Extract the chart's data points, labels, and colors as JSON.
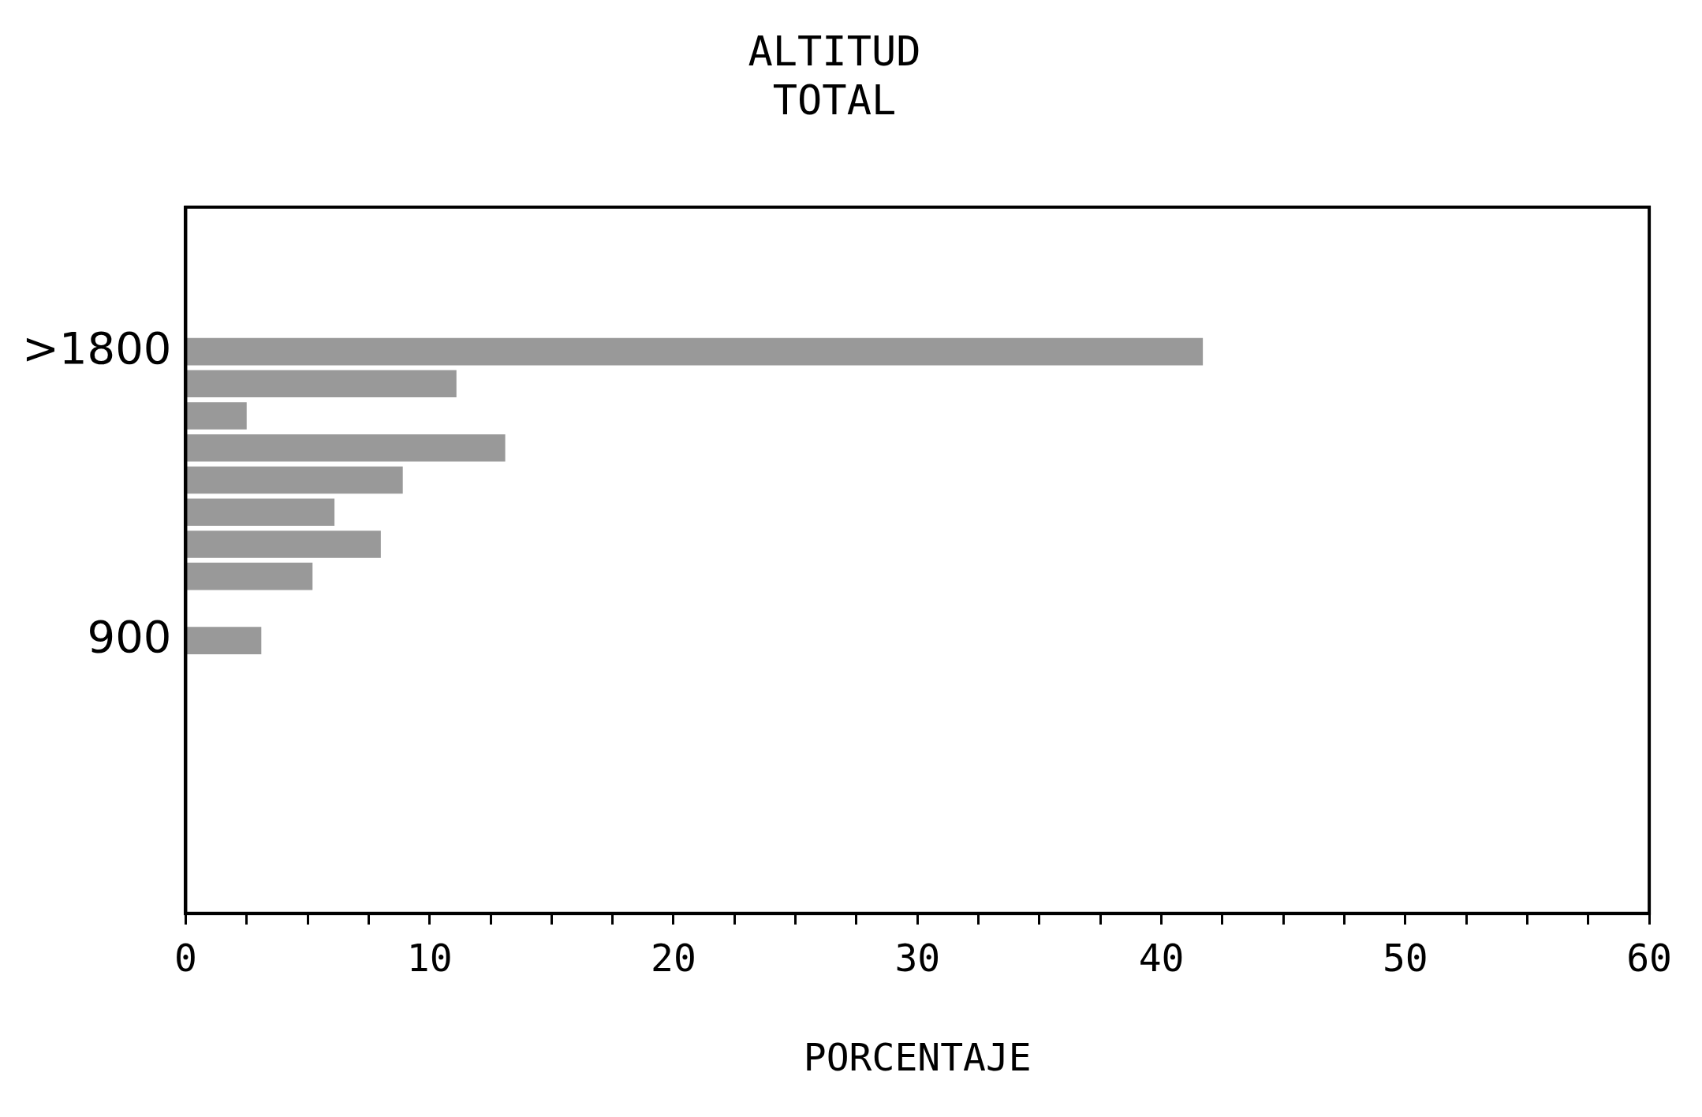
{
  "chart_data": {
    "type": "bar",
    "orientation": "horizontal",
    "title": "ALTITUD\nTOTAL",
    "xlabel": "PORCENTAJE",
    "categories": [
      null,
      null,
      null,
      null,
      ">1800",
      null,
      null,
      null,
      null,
      null,
      null,
      null,
      null,
      "900",
      null,
      null,
      null,
      null,
      null,
      null,
      null,
      null
    ],
    "values": [
      null,
      null,
      null,
      null,
      41.7,
      11.1,
      2.5,
      13.1,
      8.9,
      6.1,
      8.0,
      5.2,
      null,
      3.1,
      null,
      null,
      null,
      null,
      null,
      null,
      null,
      null
    ],
    "color": "#999999",
    "xlim": [
      0,
      60
    ],
    "xticks": [
      0,
      {
        "value": 2.5,
        "label": null
      },
      {
        "value": 5,
        "label": null
      },
      {
        "value": 7.5,
        "label": null
      },
      10,
      {
        "value": 12.5,
        "label": null
      },
      {
        "value": 15,
        "label": null
      },
      {
        "value": 17.5,
        "label": null
      },
      20,
      {
        "value": 22.5,
        "label": null
      },
      {
        "value": 25,
        "label": null
      },
      {
        "value": 27.5,
        "label": null
      },
      30,
      {
        "value": 32.5,
        "label": null
      },
      {
        "value": 35,
        "label": null
      },
      {
        "value": 37.5,
        "label": null
      },
      40,
      {
        "value": 42.5,
        "label": null
      },
      {
        "value": 45,
        "label": null
      },
      {
        "value": 47.5,
        "label": null
      },
      50,
      {
        "value": 52.5,
        "label": null
      },
      {
        "value": 55,
        "label": null
      },
      {
        "value": 57.5,
        "label": null
      },
      60
    ],
    "grid": false,
    "legend": false
  }
}
